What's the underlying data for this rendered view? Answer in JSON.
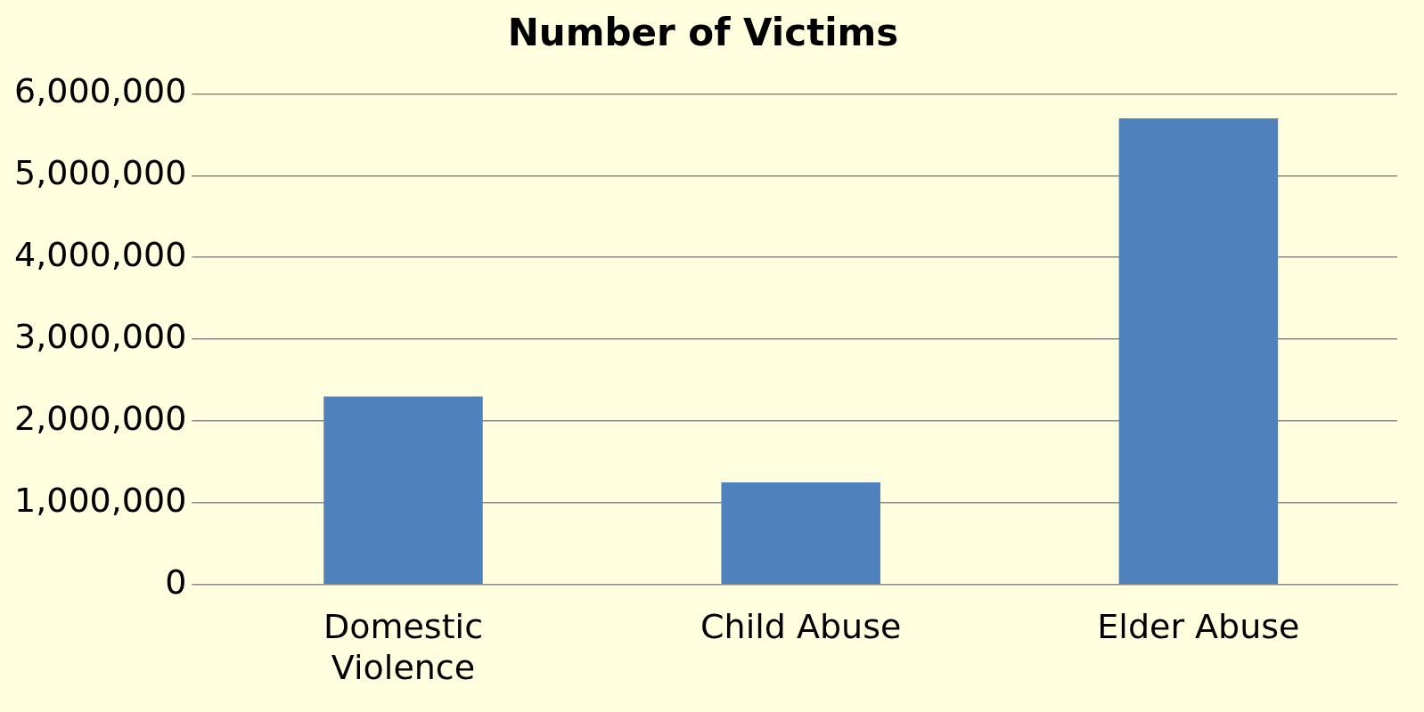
{
  "chart_data": {
    "type": "bar",
    "title": "Number of Victims",
    "categories": [
      "Domestic Violence",
      "Child Abuse",
      "Elder Abuse"
    ],
    "values": [
      2300000,
      1250000,
      5700000
    ],
    "color": "#4f81bd",
    "ylim": [
      0,
      6000000
    ],
    "yticks": [
      0,
      {
        "value": 1000000,
        "label": "1,000,000"
      },
      {
        "value": 2000000,
        "label": "2,000,000"
      },
      {
        "value": 3000000,
        "label": "3,000,000"
      },
      {
        "value": 4000000,
        "label": "4,000,000"
      },
      {
        "value": 5000000,
        "label": "5,000,000"
      },
      {
        "value": 6000000,
        "label": "6,000,000"
      }
    ],
    "grid": "y",
    "legend": false
  }
}
